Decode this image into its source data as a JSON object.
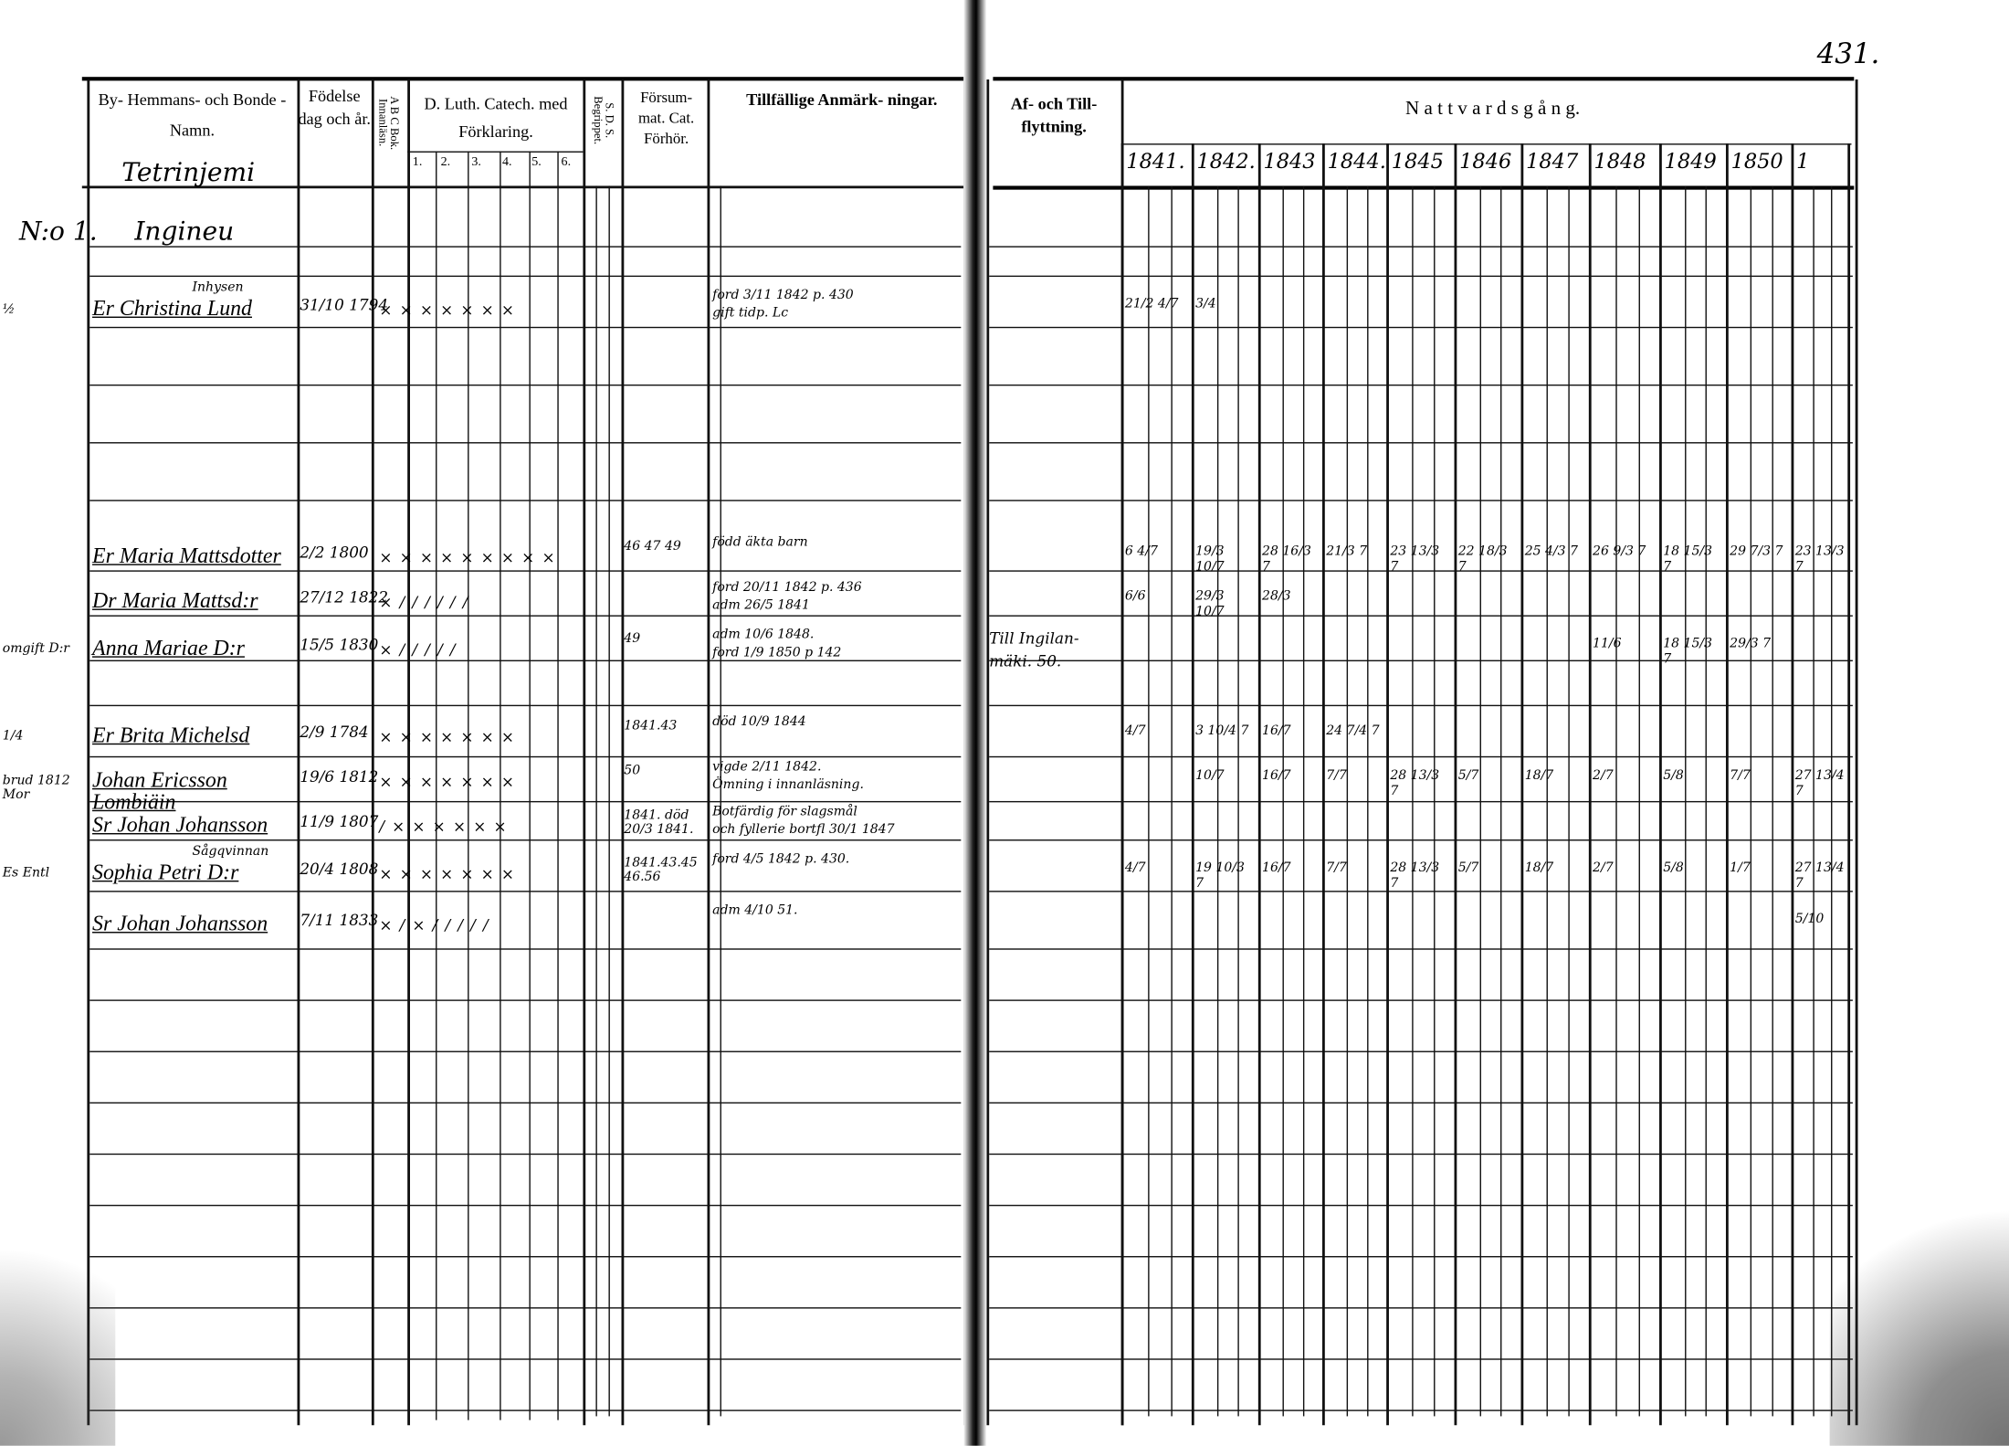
{
  "page_number": "431.",
  "left_page": {
    "headers": {
      "name": "By- Hemmans- och Bonde - Namn.",
      "birth": "Födelse dag och år.",
      "abc": "A B C Bok. Innanläsn.",
      "catechism": "D. Luth. Catech. med Förklaring.",
      "catechism_subcols": [
        "1.",
        "2.",
        "3.",
        "4.",
        "5.",
        "6."
      ],
      "sds": "S. D. S. Begrippet.",
      "missed": "Försum- mat. Cat. Förhör.",
      "remarks": "Tillfällige Anmärk- ningar."
    },
    "village": "Tetrinjemi",
    "farm_number": "N:o 1.",
    "farm_name": "Ingineu",
    "entries": [
      {
        "margin": "½",
        "name": "Er Christina Lund",
        "note_above": "Inhysen",
        "birth": "31/10 1794",
        "marks": "× × × × × × ×",
        "missed": "",
        "remarks": [
          "ford 3/11 1842 p. 430",
          "gift tidp. Lc"
        ]
      },
      {
        "margin": "",
        "name": "Er Maria Mattsdotter",
        "note_above": "",
        "birth": "2/2 1800",
        "marks": "× × × × × × × × ×",
        "missed": "46 47 49",
        "remarks": [
          "född äkta barn"
        ]
      },
      {
        "margin": "",
        "name": "Dr Maria Mattsd:r",
        "note_above": "",
        "birth": "27/12 1822",
        "marks": "× / / / / / /",
        "missed": "",
        "remarks": [
          "ford 20/11 1842 p. 436",
          "adm 26/5 1841"
        ]
      },
      {
        "margin": "omgift D:r",
        "name": "Anna Mariae D:r",
        "note_above": "",
        "birth": "15/5 1830",
        "marks": "× / / / / /",
        "missed": "49",
        "remarks": [
          "adm 10/6 1848.",
          "ford 1/9 1850 p 142"
        ]
      },
      {
        "margin": "1/4",
        "name": "Er Brita Michelsd",
        "note_above": "",
        "birth": "2/9 1784",
        "marks": "× × × × × × ×",
        "missed": "1841.43",
        "remarks": [
          "död 10/9 1844"
        ]
      },
      {
        "margin": "brud 1812 Mor",
        "name": "Johan Ericsson Lombiäin",
        "note_above": "",
        "birth": "19/6 1812",
        "marks": "× × × × × × ×",
        "missed": "50",
        "remarks": [
          "vigde 2/11 1842.",
          "Ömning i innanläsning."
        ]
      },
      {
        "margin": "",
        "name": "Sr Johan Johansson",
        "note_above": "",
        "birth": "11/9 1807",
        "marks": "/ × × × × × ×",
        "missed": "1841. död 20/3 1841.",
        "remarks": [
          "Botfärdig för slagsmål",
          "och fyllerie bortfl 30/1 1847"
        ]
      },
      {
        "margin": "Es Entl",
        "name": "Sophia Petri D:r",
        "note_above": "Sågqvinnan",
        "birth": "20/4 1808",
        "marks": "× × × × × × ×",
        "missed": "1841.43.45 46.56",
        "remarks": [
          "ford 4/5 1842 p. 430."
        ]
      },
      {
        "margin": "",
        "name": "Sr Johan Johansson",
        "note_above": "",
        "birth": "7/11 1833",
        "marks": "× / × / / / / /",
        "missed": "",
        "remarks": [
          "adm 4/10 51."
        ]
      }
    ]
  },
  "right_page": {
    "headers": {
      "moves": "Af- och Till- flyttning.",
      "communion": "N a t t v a r d s g å n g.",
      "years": [
        "1841.",
        "1842.",
        "1843",
        "1844.",
        "1845",
        "1846",
        "1847",
        "1848",
        "1849",
        "1850",
        "1"
      ]
    },
    "moves": [
      "",
      "",
      "",
      "Till Ingilan- mäki. 50.",
      "",
      "",
      "",
      "",
      ""
    ],
    "communion": [
      [
        "21/2 4/7",
        "3/4",
        "",
        "",
        "",
        "",
        "",
        "",
        "",
        "",
        ""
      ],
      [
        "6 4/7",
        "19/3 10/7",
        "28 16/3 7",
        "21/3 7",
        "23 13/3 7",
        "22 18/3 7",
        "25 4/3 7",
        "26 9/3 7",
        "18 15/3 7",
        "29 7/3 7",
        "23 13/3 7"
      ],
      [
        "6/6",
        "29/3 10/7",
        "28/3",
        "",
        "",
        "",
        "",
        "",
        "",
        "",
        ""
      ],
      [
        "",
        "",
        "",
        "",
        "",
        "",
        "",
        "11/6",
        "18 15/3 7",
        "29/3 7",
        ""
      ],
      [
        "4/7",
        "3 10/4 7",
        "16/7",
        "24 7/4 7",
        "",
        "",
        "",
        "",
        "",
        "",
        ""
      ],
      [
        "",
        "10/7",
        "16/7",
        "7/7",
        "28 13/3 7",
        "5/7",
        "18/7",
        "2/7",
        "5/8",
        "7/7",
        "27 13/4 7"
      ],
      [
        "",
        "",
        "",
        "",
        "",
        "",
        "",
        "",
        "",
        "",
        ""
      ],
      [
        "4/7",
        "19 10/3 7",
        "16/7",
        "7/7",
        "28 13/3 7",
        "5/7",
        "18/7",
        "2/7",
        "5/8",
        "1/7",
        "27 13/4 7"
      ],
      [
        "",
        "",
        "",
        "",
        "",
        "",
        "",
        "",
        "",
        "",
        "5/10"
      ]
    ]
  }
}
